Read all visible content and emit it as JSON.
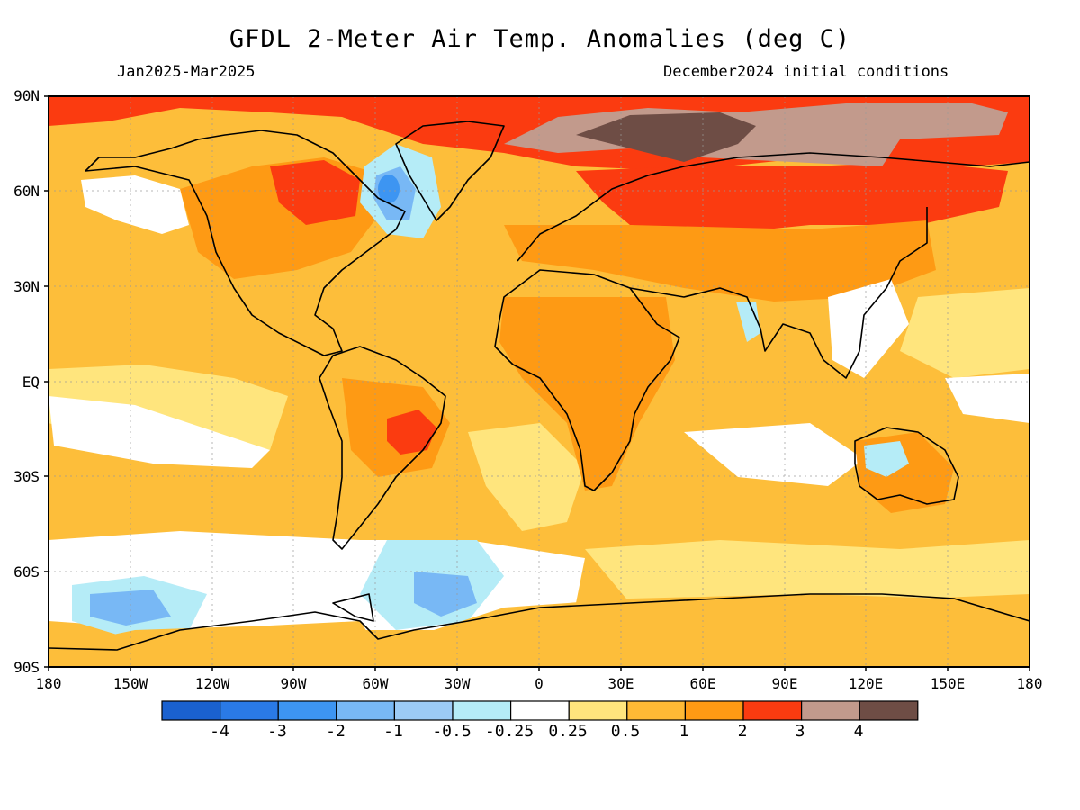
{
  "title": "GFDL 2-Meter Air Temp. Anomalies (deg C)",
  "subtitle_left": "Jan2025-Mar2025",
  "subtitle_right": "December2024 initial conditions",
  "lat_labels": [
    "90N",
    "60N",
    "30N",
    "EQ",
    "30S",
    "60S",
    "90S"
  ],
  "lon_labels": [
    "180",
    "150W",
    "120W",
    "90W",
    "60W",
    "30W",
    "0",
    "30E",
    "60E",
    "90E",
    "120E",
    "150E",
    "180"
  ],
  "colorbar": {
    "colors": [
      "#1a61cf",
      "#2a7ae6",
      "#3d95f2",
      "#78b8f5",
      "#9ccbf6",
      "#b5ecf7",
      "#ffffff",
      "#ffe57d",
      "#feb935",
      "#fe9a14",
      "#fb3b10",
      "#c29a8c",
      "#6e4d45"
    ],
    "labels": [
      "-4",
      "-3",
      "-2",
      "-1",
      "-0.5",
      "-0.25",
      "0.25",
      "0.5",
      "1",
      "2",
      "3",
      "4"
    ]
  },
  "colors": {
    "ocean_base": "#fdbe3a",
    "light_yellow": "#ffe57d",
    "orange": "#fe9a14",
    "red": "#fb3b10",
    "mauve": "#c29a8c",
    "brown": "#6e4d45",
    "light_blue": "#b5ecf7",
    "mid_blue": "#78b8f5",
    "blue": "#3d95f2"
  }
}
